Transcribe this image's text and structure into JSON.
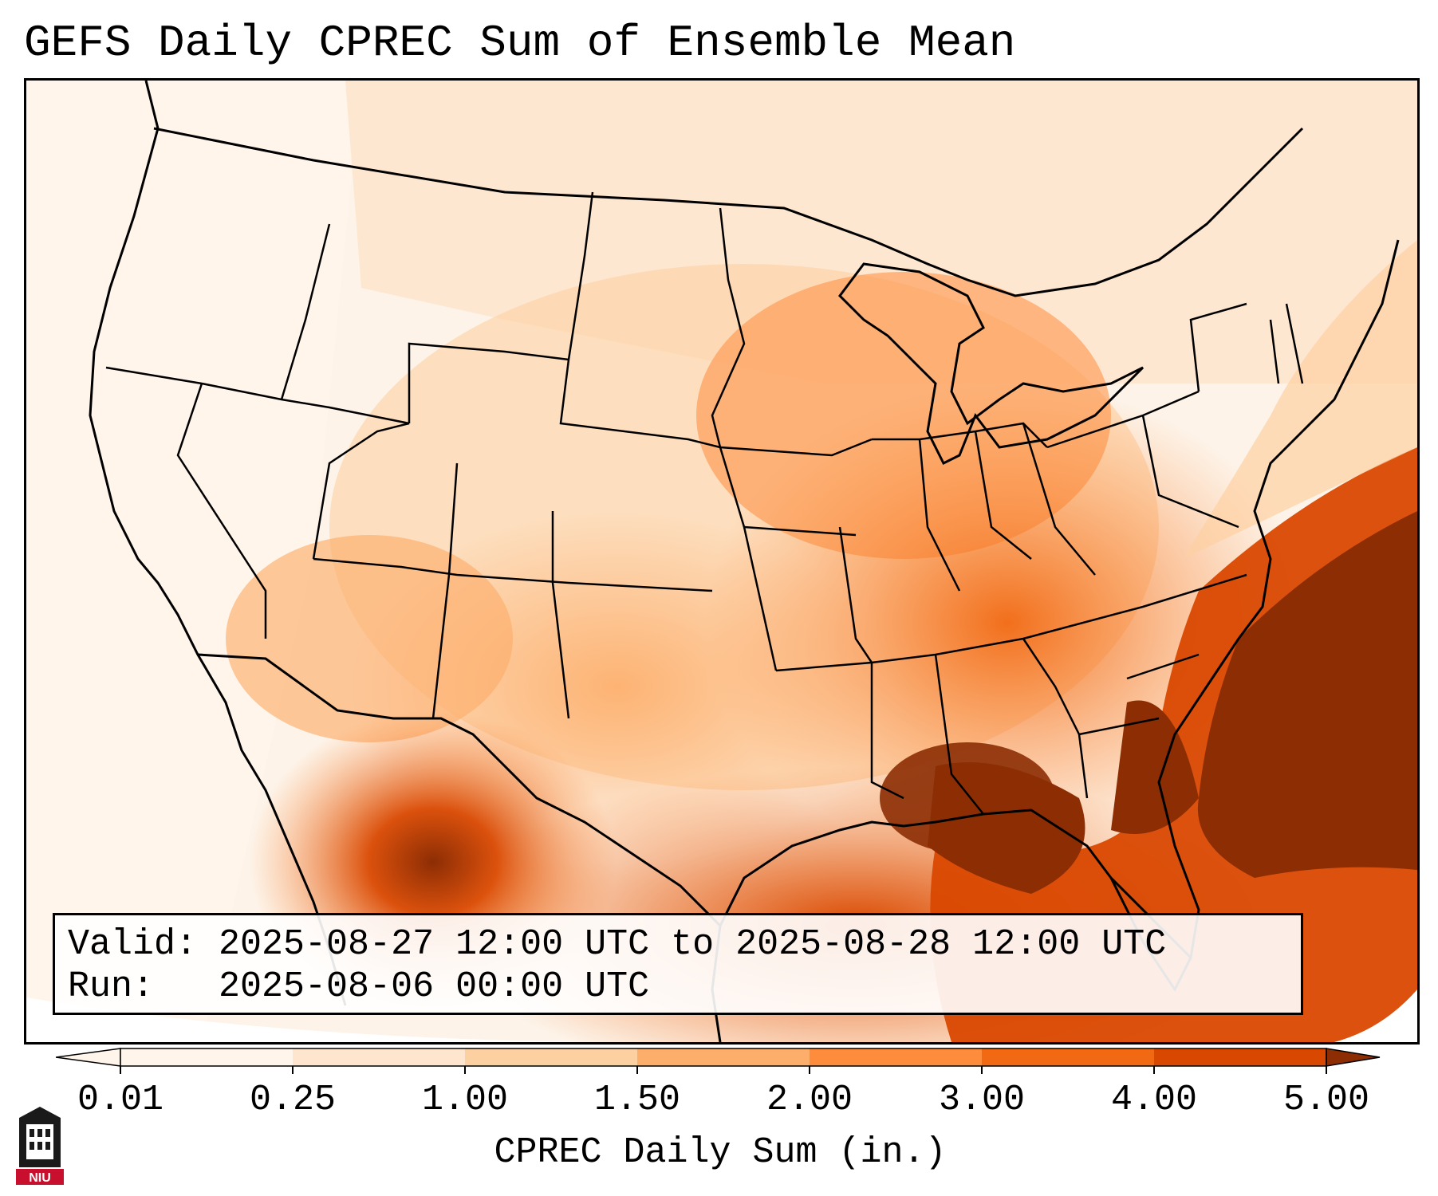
{
  "title": "GEFS Daily CPREC Sum of Ensemble Mean",
  "info": {
    "valid_line": "Valid: 2025-08-27 12:00 UTC to 2025-08-28 12:00 UTC",
    "run_line": "Run:   2025-08-06 00:00 UTC"
  },
  "colorbar": {
    "title": "CPREC Daily Sum (in.)",
    "ticks": [
      "0.01",
      "0.25",
      "1.00",
      "1.50",
      "2.00",
      "3.00",
      "4.00",
      "5.00"
    ],
    "colors": [
      "#fff5eb",
      "#fee6ce",
      "#fdd0a2",
      "#fdae6b",
      "#fd8d3c",
      "#f16913",
      "#d94801",
      "#8c2d04"
    ],
    "extend": "both"
  },
  "logo": {
    "text": "NIU"
  },
  "map": {
    "region": "Continental United States",
    "boundaries": [
      "coastlines",
      "state borders",
      "country borders"
    ]
  }
}
